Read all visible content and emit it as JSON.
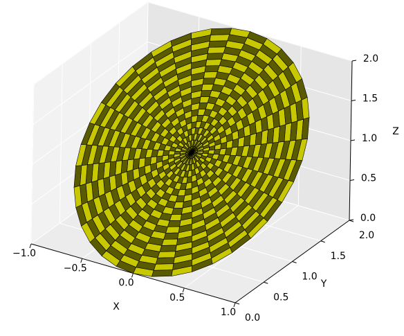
{
  "chart_data": {
    "type": "surface",
    "x_label": "X",
    "y_label": "Y",
    "z_label": "Z",
    "xlim": [
      -1,
      1
    ],
    "ylim": [
      0,
      2
    ],
    "zlim": [
      0,
      2
    ],
    "xticks": [
      {
        "value": -1,
        "label": "−1.0"
      },
      {
        "value": -0.5,
        "label": "−0.5"
      },
      {
        "value": 0,
        "label": "0.0"
      },
      {
        "value": 0.5,
        "label": "0.5"
      },
      {
        "value": 1,
        "label": "1.0"
      }
    ],
    "yticks": [
      {
        "value": 0,
        "label": "0.0"
      },
      {
        "value": 0.5,
        "label": "0.5"
      },
      {
        "value": 1,
        "label": "1.0"
      },
      {
        "value": 1.5,
        "label": "1.5"
      },
      {
        "value": 2,
        "label": "2.0"
      }
    ],
    "zticks": [
      {
        "value": 0,
        "label": "0.0"
      },
      {
        "value": 0.5,
        "label": "0.5"
      },
      {
        "value": 1,
        "label": "1.0"
      },
      {
        "value": 1.5,
        "label": "1.5"
      },
      {
        "value": 2,
        "label": "2.0"
      }
    ],
    "grid": true,
    "surface": {
      "center": [
        0,
        1,
        1
      ],
      "radius": 1,
      "colors": [
        "#c8c800",
        "#5a5a00"
      ]
    }
  }
}
